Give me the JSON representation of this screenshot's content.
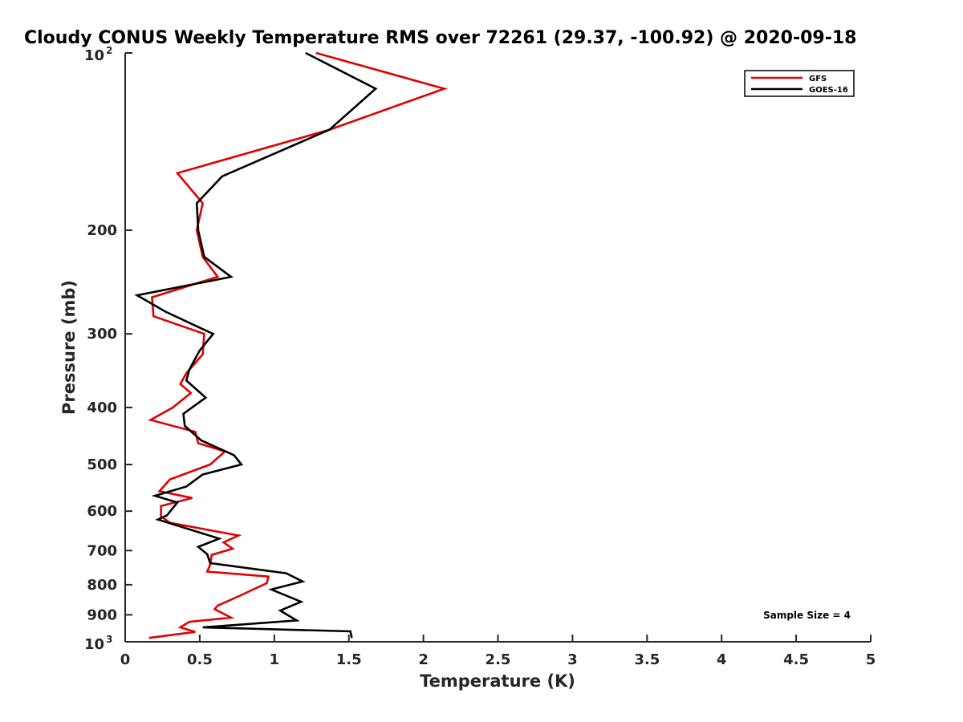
{
  "chart_data": {
    "type": "line",
    "title": "Cloudy CONUS Weekly Temperature RMS over 72261 (29.37, -100.92) @ 2020-09-18",
    "xlabel": "Temperature (K)",
    "ylabel": "Pressure (mb)",
    "xlim": [
      0,
      5
    ],
    "ylim": [
      100,
      1000
    ],
    "y_scale": "log",
    "y_reversed": true,
    "x_ticks": [
      "0",
      "0.5",
      "1",
      "1.5",
      "2",
      "2.5",
      "3",
      "3.5",
      "4",
      "4.5",
      "5"
    ],
    "y_ticks": [
      {
        "value": 100,
        "base": "10",
        "exp": "2"
      },
      {
        "value": 200,
        "label": "200"
      },
      {
        "value": 300,
        "label": "300"
      },
      {
        "value": 400,
        "label": "400"
      },
      {
        "value": 500,
        "label": "500"
      },
      {
        "value": 600,
        "label": "600"
      },
      {
        "value": 700,
        "label": "700"
      },
      {
        "value": 800,
        "label": "800"
      },
      {
        "value": 900,
        "label": "900"
      },
      {
        "value": 1000,
        "base": "10",
        "exp": "3"
      }
    ],
    "legend": {
      "placement": "top-right"
    },
    "series": [
      {
        "name": "GFS",
        "color": "#e00000",
        "points": [
          [
            1.28,
            100
          ],
          [
            2.14,
            115
          ],
          [
            1.37,
            135
          ],
          [
            0.35,
            160
          ],
          [
            0.52,
            180
          ],
          [
            0.48,
            200
          ],
          [
            0.52,
            222
          ],
          [
            0.62,
            240
          ],
          [
            0.18,
            260
          ],
          [
            0.19,
            280
          ],
          [
            0.53,
            300
          ],
          [
            0.52,
            325
          ],
          [
            0.41,
            350
          ],
          [
            0.37,
            365
          ],
          [
            0.44,
            378
          ],
          [
            0.32,
            400
          ],
          [
            0.17,
            420
          ],
          [
            0.47,
            440
          ],
          [
            0.49,
            460
          ],
          [
            0.67,
            475
          ],
          [
            0.57,
            500
          ],
          [
            0.3,
            530
          ],
          [
            0.23,
            555
          ],
          [
            0.45,
            570
          ],
          [
            0.24,
            588
          ],
          [
            0.24,
            612
          ],
          [
            0.3,
            628
          ],
          [
            0.76,
            660
          ],
          [
            0.66,
            678
          ],
          [
            0.72,
            695
          ],
          [
            0.58,
            712
          ],
          [
            0.57,
            740
          ],
          [
            0.55,
            760
          ],
          [
            0.96,
            775
          ],
          [
            0.95,
            795
          ],
          [
            0.77,
            835
          ],
          [
            0.62,
            868
          ],
          [
            0.6,
            880
          ],
          [
            0.71,
            910
          ],
          [
            0.43,
            925
          ],
          [
            0.37,
            945
          ],
          [
            0.47,
            962
          ],
          [
            0.16,
            985
          ]
        ]
      },
      {
        "name": "GOES-16",
        "color": "#000000",
        "points": [
          [
            1.21,
            100
          ],
          [
            1.68,
            115
          ],
          [
            1.37,
            135
          ],
          [
            0.65,
            162
          ],
          [
            0.48,
            180
          ],
          [
            0.49,
            200
          ],
          [
            0.53,
            222
          ],
          [
            0.71,
            240
          ],
          [
            0.08,
            258
          ],
          [
            0.27,
            275
          ],
          [
            0.59,
            300
          ],
          [
            0.5,
            320
          ],
          [
            0.43,
            345
          ],
          [
            0.41,
            360
          ],
          [
            0.54,
            385
          ],
          [
            0.39,
            410
          ],
          [
            0.4,
            430
          ],
          [
            0.51,
            455
          ],
          [
            0.73,
            482
          ],
          [
            0.78,
            500
          ],
          [
            0.52,
            520
          ],
          [
            0.41,
            545
          ],
          [
            0.2,
            565
          ],
          [
            0.35,
            580
          ],
          [
            0.28,
            610
          ],
          [
            0.22,
            620
          ],
          [
            0.63,
            668
          ],
          [
            0.49,
            690
          ],
          [
            0.55,
            710
          ],
          [
            0.57,
            735
          ],
          [
            1.08,
            765
          ],
          [
            1.19,
            790
          ],
          [
            0.98,
            815
          ],
          [
            1.18,
            855
          ],
          [
            1.04,
            885
          ],
          [
            1.15,
            920
          ],
          [
            0.52,
            945
          ],
          [
            1.51,
            960
          ],
          [
            1.52,
            985
          ]
        ]
      }
    ],
    "annotation": "Sample Size = 4"
  }
}
